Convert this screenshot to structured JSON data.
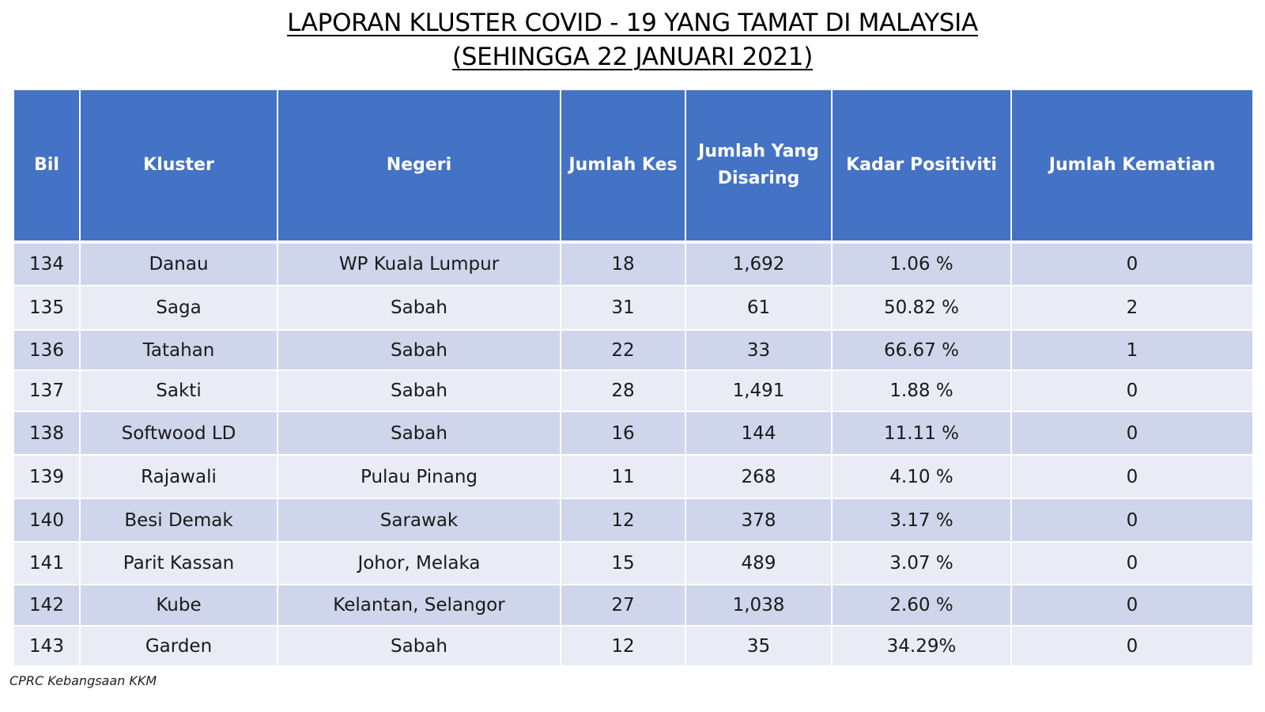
{
  "title": {
    "line1": "LAPORAN KLUSTER COVID - 19 YANG TAMAT DI MALAYSIA",
    "line2": "(SEHINGGA 22 JANUARI 2021)"
  },
  "table": {
    "headers": [
      "Bil",
      "Kluster",
      "Negeri",
      "Jumlah Kes",
      "Jumlah Yang Disaring",
      "Kadar Positiviti",
      "Jumlah Kematian"
    ],
    "rows": [
      [
        "134",
        "Danau",
        "WP Kuala Lumpur",
        "18",
        "1,692",
        "1.06 %",
        "0"
      ],
      [
        "135",
        "Saga",
        "Sabah",
        "31",
        "61",
        "50.82 %",
        "2"
      ],
      [
        "136",
        "Tatahan",
        "Sabah",
        "22",
        "33",
        "66.67 %",
        "1"
      ],
      [
        "137",
        "Sakti",
        "Sabah",
        "28",
        "1,491",
        "1.88 %",
        "0"
      ],
      [
        "138",
        "Softwood LD",
        "Sabah",
        "16",
        "144",
        "11.11 %",
        "0"
      ],
      [
        "139",
        "Rajawali",
        "Pulau Pinang",
        "11",
        "268",
        "4.10 %",
        "0"
      ],
      [
        "140",
        "Besi Demak",
        "Sarawak",
        "12",
        "378",
        "3.17 %",
        "0"
      ],
      [
        "141",
        "Parit Kassan",
        "Johor, Melaka",
        "15",
        "489",
        "3.07 %",
        "0"
      ],
      [
        "142",
        "Kube",
        "Kelantan, Selangor",
        "27",
        "1,038",
        "2.60 %",
        "0"
      ],
      [
        "143",
        "Garden",
        "Sabah",
        "12",
        "35",
        "34.29%",
        "0"
      ]
    ]
  },
  "footer": {
    "source": "CPRC Kebangsaan KKM"
  },
  "colors": {
    "header_bg": "#4472c4",
    "header_text": "#ffffff",
    "row_odd": "#cfd5ea",
    "row_even": "#e9ebf5"
  }
}
